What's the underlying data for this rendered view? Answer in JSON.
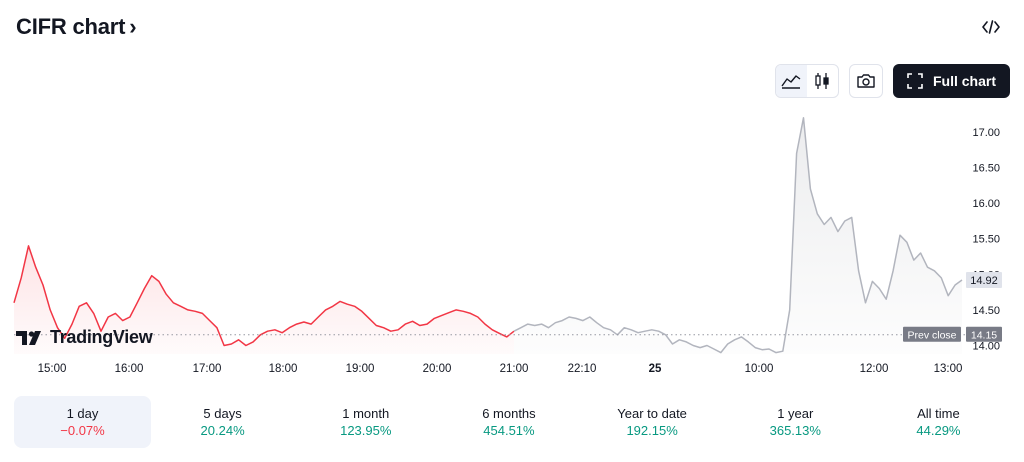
{
  "header": {
    "title": "CIFR chart",
    "chevron": "›"
  },
  "toolbar": {
    "chart_type_line_icon": "area-chart-icon",
    "chart_type_candle_icon": "candlestick-icon",
    "snapshot_icon": "camera-icon",
    "full_chart_label": "Full chart",
    "embed_icon": "code-icon"
  },
  "brand": {
    "name": "TradingView"
  },
  "colors": {
    "down": "#f23645",
    "up": "#089981",
    "extended": "#b2b5be"
  },
  "chart_data": {
    "type": "line",
    "title": "",
    "xlabel": "",
    "ylabel": "",
    "ylim": [
      13.88,
      17.45
    ],
    "x_ticks": [
      "15:00",
      "16:00",
      "17:00",
      "18:00",
      "19:00",
      "20:00",
      "21:00",
      "22:10",
      "25",
      "10:00",
      "12:00",
      "13:00"
    ],
    "y_ticks": [
      "17.00",
      "16.50",
      "16.00",
      "15.50",
      "15.00",
      "14.50",
      "14.00"
    ],
    "current_price": "14.92",
    "prev_close": {
      "label": "Prev close",
      "value": "14.15"
    },
    "series": [
      {
        "session": "regular",
        "values": [
          14.6,
          14.95,
          15.4,
          15.1,
          14.85,
          14.5,
          14.25,
          14.1,
          14.3,
          14.55,
          14.6,
          14.45,
          14.2,
          14.4,
          14.45,
          14.35,
          14.4,
          14.6,
          14.8,
          14.98,
          14.9,
          14.72,
          14.6,
          14.55,
          14.5,
          14.48,
          14.45,
          14.35,
          14.25,
          14.0,
          14.02,
          14.08,
          14.0,
          14.05,
          14.15,
          14.2,
          14.22,
          14.18,
          14.25,
          14.3,
          14.33,
          14.3,
          14.4,
          14.5,
          14.55,
          14.62,
          14.58,
          14.55,
          14.48,
          14.38,
          14.28,
          14.25,
          14.2,
          14.22,
          14.3,
          14.34,
          14.28,
          14.3,
          14.38,
          14.42,
          14.46,
          14.5,
          14.48,
          14.45,
          14.4,
          14.3,
          14.22,
          14.17,
          14.12,
          14.2
        ]
      },
      {
        "session": "extended",
        "values": [
          14.2,
          14.25,
          14.3,
          14.28,
          14.3,
          14.25,
          14.32,
          14.35,
          14.4,
          14.38,
          14.35,
          14.4,
          14.32,
          14.25,
          14.22,
          14.15,
          14.25,
          14.22,
          14.18,
          14.2,
          14.22,
          14.2,
          14.15,
          14.02,
          14.08,
          14.05,
          14.0,
          13.97,
          14.0,
          13.95,
          13.9,
          14.02,
          14.08,
          14.12,
          14.05,
          13.97,
          13.94,
          13.95,
          13.9,
          13.92,
          14.5,
          16.7,
          17.2,
          16.2,
          15.85,
          15.7,
          15.8,
          15.6,
          15.75,
          15.8,
          15.05,
          14.6,
          14.9,
          14.8,
          14.65,
          15.05,
          15.55,
          15.45,
          15.2,
          15.3,
          15.1,
          15.05,
          14.95,
          14.7,
          14.85,
          14.92
        ]
      }
    ]
  },
  "periods": [
    {
      "label": "1 day",
      "change": "−0.07%",
      "dir": "neg"
    },
    {
      "label": "5 days",
      "change": "20.24%",
      "dir": "pos"
    },
    {
      "label": "1 month",
      "change": "123.95%",
      "dir": "pos"
    },
    {
      "label": "6 months",
      "change": "454.51%",
      "dir": "pos"
    },
    {
      "label": "Year to date",
      "change": "192.15%",
      "dir": "pos"
    },
    {
      "label": "1 year",
      "change": "365.13%",
      "dir": "pos"
    },
    {
      "label": "All time",
      "change": "44.29%",
      "dir": "pos"
    }
  ]
}
